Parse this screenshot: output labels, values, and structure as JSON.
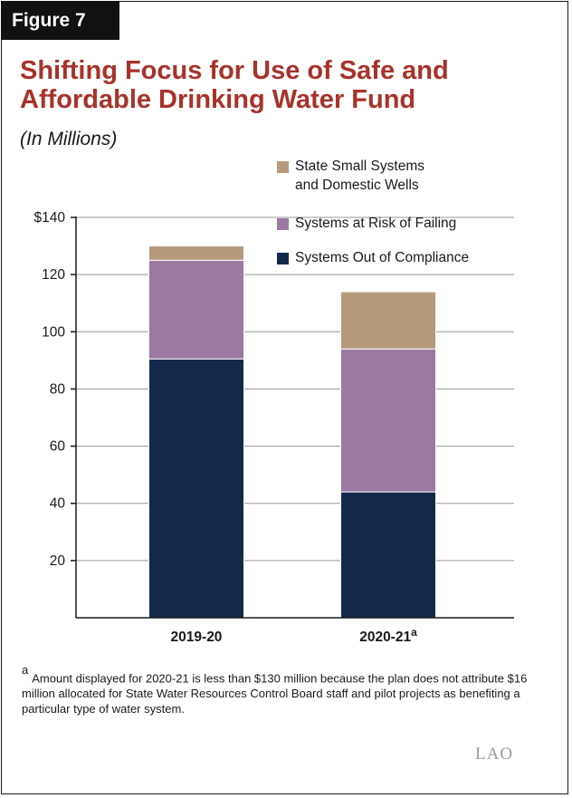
{
  "figure_label": "Figure 7",
  "title": "Shifting Focus for Use of Safe and Affordable Drinking Water Fund",
  "subtitle": "(In Millions)",
  "footnote": {
    "marker": "a",
    "text": "Amount displayed for 2020-21 is less than $130 million because the plan does not attribute $16 million allocated for State Water Resources Control Board staff and pilot projects as benefiting a particular type of water system."
  },
  "logo": "LAO",
  "colors": {
    "title": "#a8322a",
    "out_of_compliance": "#13294b",
    "at_risk": "#9b79a1",
    "small_systems": "#b49a7b"
  },
  "chart_data": {
    "type": "bar",
    "stacked": true,
    "categories": [
      "2019-20",
      "2020-21"
    ],
    "category_superscripts": [
      "",
      "a"
    ],
    "series": [
      {
        "name": "Systems Out of Compliance",
        "values": [
          90.5,
          44
        ],
        "color": "#13294b"
      },
      {
        "name": "Systems at Risk of Failing",
        "values": [
          34.5,
          50
        ],
        "color": "#9b79a1"
      },
      {
        "name": "State Small Systems and Domestic Wells",
        "values": [
          5,
          20
        ],
        "color": "#b49a7b"
      }
    ],
    "legend_order": [
      2,
      1,
      0
    ],
    "ylim": [
      0,
      140
    ],
    "yticks": [
      20,
      40,
      60,
      80,
      100,
      120,
      140
    ],
    "ytick_labels": [
      "20",
      "40",
      "60",
      "80",
      "100",
      "120",
      "$140"
    ],
    "grid": true,
    "legend_position": "top-right"
  }
}
